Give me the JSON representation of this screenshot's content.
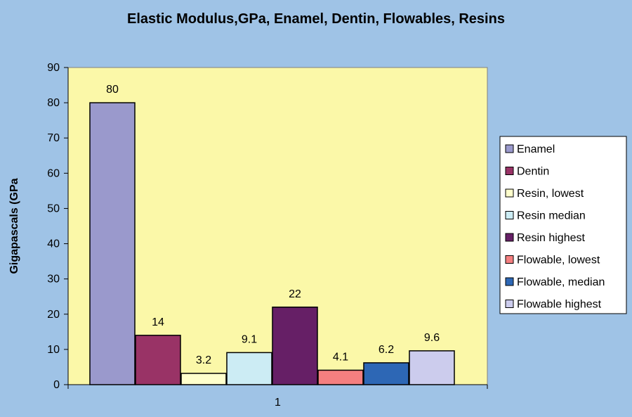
{
  "chart_data": {
    "type": "bar",
    "title": "Elastic Modulus,GPa, Enamel, Dentin, Flowables, Resins",
    "ylabel": "Gigapascals (GPa",
    "xlabel": "",
    "categories": [
      "1"
    ],
    "ylim": [
      0,
      90
    ],
    "yticks": [
      0,
      10,
      20,
      30,
      40,
      50,
      60,
      70,
      80,
      90
    ],
    "grid": false,
    "legend_position": "right",
    "plot_background": "#fbf8a8",
    "series": [
      {
        "name": "Enamel",
        "values": [
          80
        ],
        "label": "80",
        "color": "#9a99cc"
      },
      {
        "name": "Dentin",
        "values": [
          14
        ],
        "label": "14",
        "color": "#993366"
      },
      {
        "name": "Resin, lowest",
        "values": [
          3.2
        ],
        "label": "3.2",
        "color": "#ffffcc"
      },
      {
        "name": "Resin median",
        "values": [
          9.1
        ],
        "label": "9.1",
        "color": "#ccecf4"
      },
      {
        "name": "Resin highest",
        "values": [
          22
        ],
        "label": "22",
        "color": "#661f66"
      },
      {
        "name": "Flowable, lowest",
        "values": [
          4.1
        ],
        "label": "4.1",
        "color": "#f47f80"
      },
      {
        "name": "Flowable, median",
        "values": [
          6.2
        ],
        "label": "6.2",
        "color": "#2d67b5"
      },
      {
        "name": "Flowable highest",
        "values": [
          9.6
        ],
        "label": "9.6",
        "color": "#cccced"
      }
    ]
  }
}
